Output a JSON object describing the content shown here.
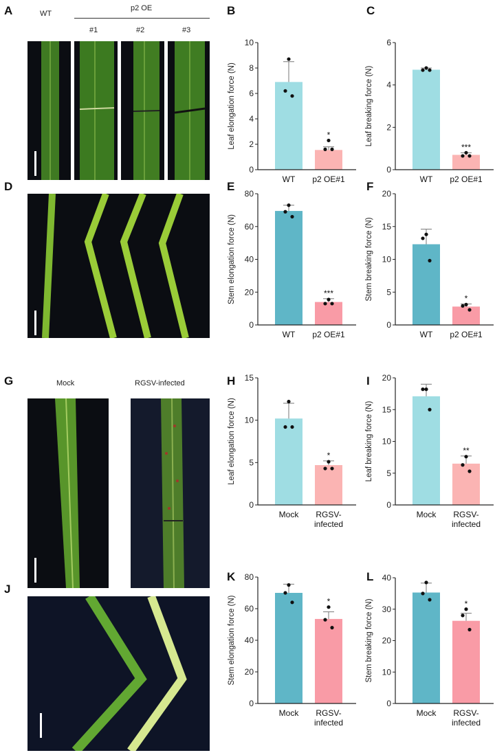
{
  "panel_letters": [
    "A",
    "B",
    "C",
    "D",
    "E",
    "F",
    "G",
    "H",
    "I",
    "J",
    "K",
    "L"
  ],
  "panel_a": {
    "wt": "WT",
    "group": "p2 OE",
    "lines": [
      "#1",
      "#2",
      "#3"
    ]
  },
  "panel_g": {
    "mock": "Mock",
    "infected": "RGSV-infected"
  },
  "colors": {
    "light_cyan": "#9fdde3",
    "light_pink": "#fbb4b3",
    "teal": "#5fb6c7",
    "pink": "#f99ba6"
  },
  "chart_data": [
    {
      "panel": "B",
      "type": "bar",
      "ylabel": "Leaf elongation force (N)",
      "ylim": [
        0,
        10
      ],
      "yticks": [
        0,
        2,
        4,
        6,
        8,
        10
      ],
      "categories": [
        [
          "WT"
        ],
        [
          "p2 OE#1"
        ]
      ],
      "values": [
        6.9,
        1.55
      ],
      "error_top": [
        8.5,
        1.8
      ],
      "points": [
        [
          8.7,
          6.2,
          5.8
        ],
        [
          2.3,
          1.6,
          1.6
        ]
      ],
      "significance": [
        "",
        "*"
      ],
      "colors": [
        "light_cyan",
        "light_pink"
      ]
    },
    {
      "panel": "C",
      "type": "bar",
      "ylabel": "Leaf breaking force (N)",
      "ylim": [
        0,
        6
      ],
      "yticks": [
        0,
        2,
        4,
        6
      ],
      "categories": [
        [
          "WT"
        ],
        [
          "p2 OE#1"
        ]
      ],
      "values": [
        4.72,
        0.7
      ],
      "error_top": [
        4.8,
        0.8
      ],
      "points": [
        [
          4.8,
          4.7,
          4.7
        ],
        [
          0.8,
          0.65,
          0.65
        ]
      ],
      "significance": [
        "",
        "***"
      ],
      "colors": [
        "light_cyan",
        "light_pink"
      ]
    },
    {
      "panel": "E",
      "type": "bar",
      "ylabel": "Stem elongation force (N)",
      "ylim": [
        0,
        80
      ],
      "yticks": [
        0,
        20,
        40,
        60,
        80
      ],
      "categories": [
        [
          "WT"
        ],
        [
          "p2 OE#1"
        ]
      ],
      "values": [
        69.5,
        14
      ],
      "error_top": [
        73,
        16
      ],
      "points": [
        [
          73,
          69,
          66
        ],
        [
          15.5,
          13,
          13
        ]
      ],
      "significance": [
        "",
        "***"
      ],
      "colors": [
        "teal",
        "pink"
      ]
    },
    {
      "panel": "F",
      "type": "bar",
      "ylabel": "Stem breaking force (N)",
      "ylim": [
        0,
        20
      ],
      "yticks": [
        0,
        5,
        10,
        15,
        20
      ],
      "categories": [
        [
          "WT"
        ],
        [
          "p2 OE#1"
        ]
      ],
      "values": [
        12.3,
        2.8
      ],
      "error_top": [
        14.6,
        3.2
      ],
      "points": [
        [
          13.8,
          13.2,
          9.8
        ],
        [
          3.1,
          2.9,
          2.3
        ]
      ],
      "significance": [
        "",
        "*"
      ],
      "colors": [
        "teal",
        "pink"
      ]
    },
    {
      "panel": "H",
      "type": "bar",
      "ylabel": "Leaf elongation force (N)",
      "ylim": [
        0,
        15
      ],
      "yticks": [
        0,
        5,
        10,
        15
      ],
      "categories": [
        [
          "Mock"
        ],
        [
          "RGSV-",
          "infected"
        ]
      ],
      "values": [
        10.2,
        4.7
      ],
      "error_top": [
        12,
        5.2
      ],
      "points": [
        [
          12.2,
          9.2,
          9.2
        ],
        [
          5.1,
          4.3,
          4.3
        ]
      ],
      "significance": [
        "",
        "*"
      ],
      "colors": [
        "light_cyan",
        "light_pink"
      ]
    },
    {
      "panel": "I",
      "type": "bar",
      "ylabel": "Leaf breaking force (N)",
      "ylim": [
        0,
        20
      ],
      "yticks": [
        0,
        5,
        10,
        15,
        20
      ],
      "categories": [
        [
          "Mock"
        ],
        [
          "RGSV-",
          "infected"
        ]
      ],
      "values": [
        17.1,
        6.5
      ],
      "error_top": [
        19,
        7.7
      ],
      "points": [
        [
          18.2,
          18.2,
          15
        ],
        [
          7.6,
          6.3,
          5.3
        ]
      ],
      "significance": [
        "",
        "**"
      ],
      "colors": [
        "light_cyan",
        "light_pink"
      ]
    },
    {
      "panel": "K",
      "type": "bar",
      "ylabel": "Stem elongation force (N)",
      "ylim": [
        0,
        80
      ],
      "yticks": [
        0,
        20,
        40,
        60,
        80
      ],
      "categories": [
        [
          "Mock"
        ],
        [
          "RGSV-",
          "infected"
        ]
      ],
      "values": [
        70,
        53.5
      ],
      "error_top": [
        75.5,
        58
      ],
      "points": [
        [
          75,
          70,
          64
        ],
        [
          61,
          53,
          48
        ]
      ],
      "significance": [
        "",
        "*"
      ],
      "colors": [
        "teal",
        "pink"
      ]
    },
    {
      "panel": "L",
      "type": "bar",
      "ylabel": "Stem breaking force (N)",
      "ylim": [
        0,
        40
      ],
      "yticks": [
        0,
        10,
        20,
        30,
        40
      ],
      "categories": [
        [
          "Mock"
        ],
        [
          "RGSV-",
          "infected"
        ]
      ],
      "values": [
        35.3,
        26.3
      ],
      "error_top": [
        38.3,
        28.7
      ],
      "points": [
        [
          38.5,
          35,
          33
        ],
        [
          30,
          28,
          23.5
        ]
      ],
      "significance": [
        "",
        "*"
      ],
      "colors": [
        "teal",
        "pink"
      ]
    }
  ]
}
